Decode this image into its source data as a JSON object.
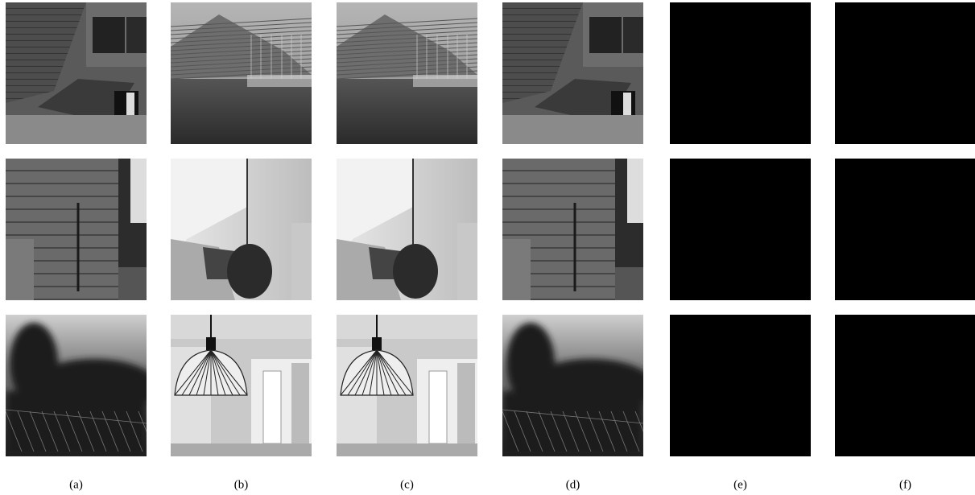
{
  "columns": [
    {
      "label": "(a)"
    },
    {
      "label": "(b)"
    },
    {
      "label": "(c)"
    },
    {
      "label": "(d)"
    },
    {
      "label": "(e)"
    },
    {
      "label": "(f)"
    }
  ]
}
